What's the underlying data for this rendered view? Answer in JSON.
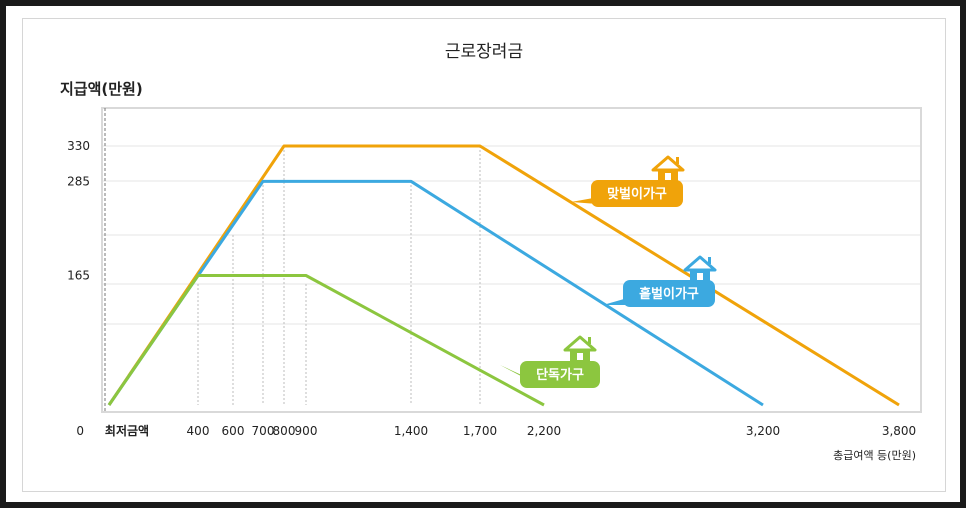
{
  "chart_data": {
    "type": "line",
    "title": "근로장려금",
    "ylabel": "지급액(만원)",
    "xlabel": "총급여액 등(만원)",
    "x_tick_labels": [
      "최저금액",
      "400",
      "600",
      "700",
      "800",
      "900",
      "1,400",
      "1,700",
      "2,200",
      "3,200",
      "3,800"
    ],
    "y_tick_labels": [
      "0",
      "165",
      "285",
      "330"
    ],
    "yticks": [
      0,
      165,
      285,
      330
    ],
    "ylim": [
      0,
      330
    ],
    "grid": true,
    "series": [
      {
        "name": "단독가구",
        "color": "#8cc63f",
        "points": [
          [
            0,
            0
          ],
          [
            400,
            165
          ],
          [
            900,
            165
          ],
          [
            2200,
            0
          ]
        ]
      },
      {
        "name": "홑벌이가구",
        "color": "#3ca9e0",
        "points": [
          [
            0,
            0
          ],
          [
            700,
            285
          ],
          [
            1400,
            285
          ],
          [
            3200,
            0
          ]
        ]
      },
      {
        "name": "맞벌이가구",
        "color": "#f0a30a",
        "points": [
          [
            0,
            0
          ],
          [
            800,
            330
          ],
          [
            1700,
            330
          ],
          [
            3800,
            0
          ]
        ]
      }
    ]
  }
}
